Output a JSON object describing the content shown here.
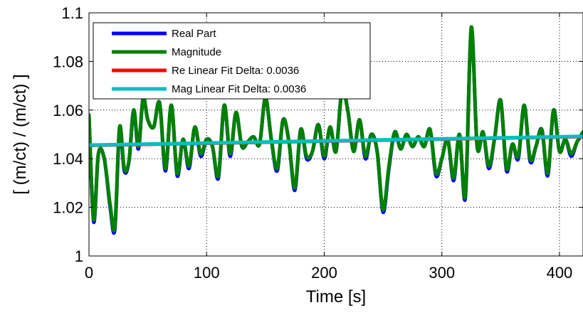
{
  "chart_data": {
    "type": "line",
    "xlabel": "Time [s]",
    "ylabel": "[ (m/ct) / (m/ct) ]",
    "xlim": [
      0,
      420
    ],
    "ylim": [
      1.0,
      1.1
    ],
    "xticks": [
      0,
      100,
      200,
      300,
      400
    ],
    "yticks": [
      1.0,
      1.02,
      1.04,
      1.06,
      1.08,
      1.1
    ],
    "xtick_labels": [
      "0",
      "100",
      "200",
      "300",
      "400"
    ],
    "ytick_labels": [
      "1",
      "1.02",
      "1.04",
      "1.06",
      "1.08",
      "1.1"
    ],
    "grid": true,
    "legend_position": "top-left",
    "series": [
      {
        "name": "Real Part",
        "color": "#0000ff",
        "x": [
          0,
          4,
          8,
          13,
          18,
          22,
          26,
          30,
          34,
          38,
          42,
          46,
          50,
          55,
          60,
          65,
          70,
          75,
          80,
          85,
          90,
          95,
          100,
          105,
          110,
          115,
          120,
          125,
          130,
          135,
          140,
          145,
          150,
          155,
          160,
          165,
          170,
          175,
          180,
          185,
          190,
          195,
          200,
          205,
          210,
          215,
          220,
          225,
          230,
          235,
          240,
          245,
          250,
          255,
          260,
          265,
          270,
          275,
          280,
          285,
          290,
          295,
          300,
          305,
          310,
          315,
          320,
          325,
          330,
          335,
          340,
          345,
          350,
          355,
          360,
          365,
          370,
          375,
          380,
          385,
          390,
          395,
          400,
          405,
          410,
          415,
          420
        ],
        "y": [
          1.057,
          1.014,
          1.042,
          1.04,
          1.02,
          1.011,
          1.052,
          1.035,
          1.039,
          1.06,
          1.044,
          1.065,
          1.056,
          1.053,
          1.063,
          1.035,
          1.062,
          1.033,
          1.048,
          1.036,
          1.053,
          1.041,
          1.048,
          1.045,
          1.032,
          1.062,
          1.041,
          1.059,
          1.045,
          1.047,
          1.049,
          1.046,
          1.065,
          1.048,
          1.035,
          1.056,
          1.047,
          1.027,
          1.052,
          1.04,
          1.043,
          1.054,
          1.04,
          1.053,
          1.043,
          1.068,
          1.06,
          1.043,
          1.056,
          1.04,
          1.05,
          1.043,
          1.018,
          1.036,
          1.051,
          1.044,
          1.05,
          1.045,
          1.049,
          1.045,
          1.052,
          1.033,
          1.04,
          1.048,
          1.031,
          1.05,
          1.024,
          1.093,
          1.045,
          1.051,
          1.036,
          1.049,
          1.064,
          1.035,
          1.046,
          1.04,
          1.062,
          1.039,
          1.045,
          1.052,
          1.033,
          1.06,
          1.043,
          1.048,
          1.041,
          1.047,
          1.05
        ]
      },
      {
        "name": "Magnitude",
        "color": "#008000",
        "x": [
          0,
          4,
          8,
          13,
          18,
          22,
          26,
          30,
          34,
          38,
          42,
          46,
          50,
          55,
          60,
          65,
          70,
          75,
          80,
          85,
          90,
          95,
          100,
          105,
          110,
          115,
          120,
          125,
          130,
          135,
          140,
          145,
          150,
          155,
          160,
          165,
          170,
          175,
          180,
          185,
          190,
          195,
          200,
          205,
          210,
          215,
          220,
          225,
          230,
          235,
          240,
          245,
          250,
          255,
          260,
          265,
          270,
          275,
          280,
          285,
          290,
          295,
          300,
          305,
          310,
          315,
          320,
          325,
          330,
          335,
          340,
          345,
          350,
          355,
          360,
          365,
          370,
          375,
          380,
          385,
          390,
          395,
          400,
          405,
          410,
          415,
          420
        ],
        "y": [
          1.058,
          1.015,
          1.042,
          1.04,
          1.021,
          1.012,
          1.053,
          1.036,
          1.039,
          1.06,
          1.045,
          1.065,
          1.056,
          1.053,
          1.063,
          1.036,
          1.062,
          1.034,
          1.048,
          1.037,
          1.053,
          1.042,
          1.048,
          1.045,
          1.033,
          1.062,
          1.042,
          1.059,
          1.045,
          1.047,
          1.049,
          1.046,
          1.065,
          1.048,
          1.036,
          1.056,
          1.047,
          1.028,
          1.052,
          1.041,
          1.043,
          1.054,
          1.041,
          1.053,
          1.043,
          1.068,
          1.06,
          1.043,
          1.056,
          1.041,
          1.05,
          1.043,
          1.019,
          1.037,
          1.051,
          1.044,
          1.05,
          1.045,
          1.049,
          1.045,
          1.052,
          1.034,
          1.04,
          1.048,
          1.032,
          1.05,
          1.025,
          1.094,
          1.045,
          1.051,
          1.037,
          1.049,
          1.064,
          1.036,
          1.046,
          1.041,
          1.062,
          1.04,
          1.045,
          1.052,
          1.034,
          1.06,
          1.043,
          1.048,
          1.042,
          1.047,
          1.051
        ]
      },
      {
        "name": "Re Linear Fit Delta: 0.0036",
        "color": "#ff0000",
        "x": [
          0,
          420
        ],
        "y": [
          1.0455,
          1.0491
        ]
      },
      {
        "name": "Mag Linear Fit Delta: 0.0036",
        "color": "#00bfbf",
        "x": [
          0,
          420
        ],
        "y": [
          1.0456,
          1.0492
        ]
      }
    ]
  }
}
